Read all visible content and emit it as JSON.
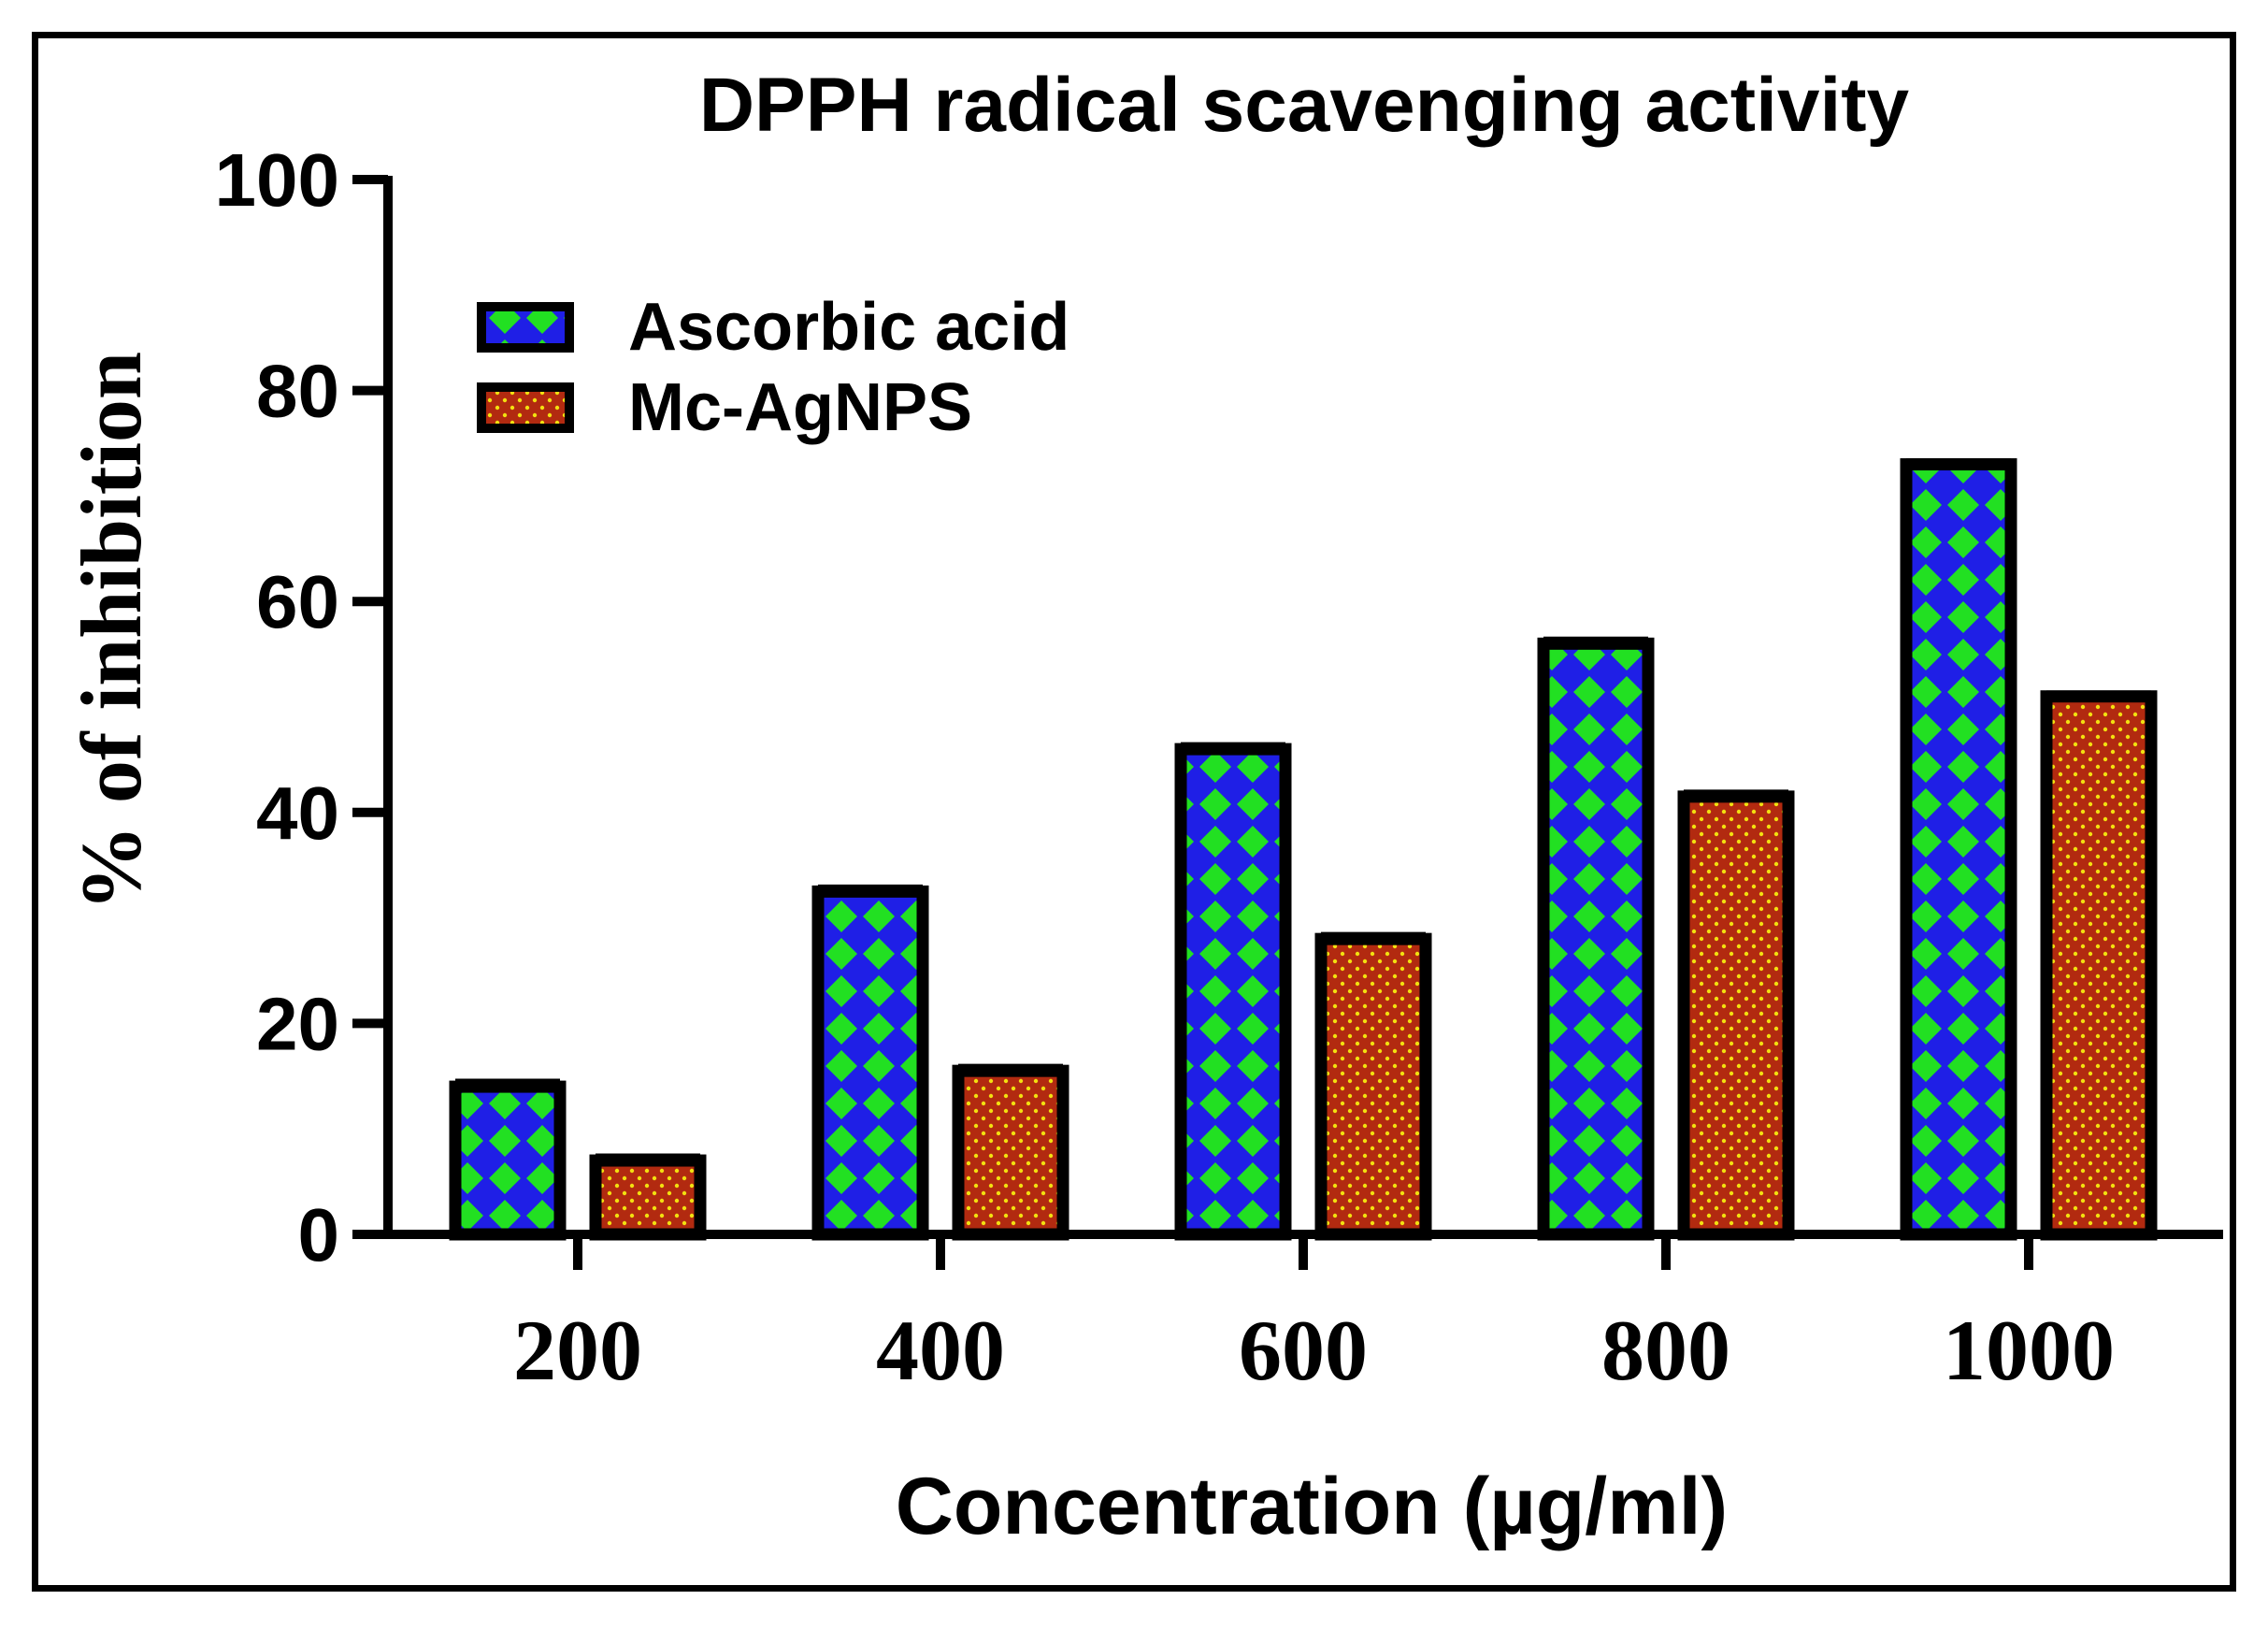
{
  "chart_data": {
    "type": "bar",
    "title": "DPPH radical scavenging activity",
    "xlabel": "Concentration (µg/ml)",
    "ylabel": "% of inhibition",
    "ylim": [
      0,
      100
    ],
    "yticks": [
      "0",
      "20",
      "40",
      "60",
      "80",
      "100"
    ],
    "categories": [
      "200",
      "400",
      "600",
      "800",
      "1000"
    ],
    "legend_position": "top-left",
    "series": [
      {
        "name": "Ascorbic acid",
        "values": [
          14,
          32.5,
          46,
          56,
          73
        ],
        "errors": [
          0.5,
          0.4,
          0.4,
          0.4,
          0.3
        ],
        "fill_color": "#1f1fe6",
        "pattern_color": "#22e022"
      },
      {
        "name": "Mc-AgNPS",
        "values": [
          7,
          15.5,
          28,
          41.5,
          51
        ],
        "errors": [
          0.4,
          0.4,
          0.4,
          0.4,
          0.3
        ],
        "fill_color": "#b22a10",
        "pattern_color": "#f2e010"
      }
    ]
  }
}
